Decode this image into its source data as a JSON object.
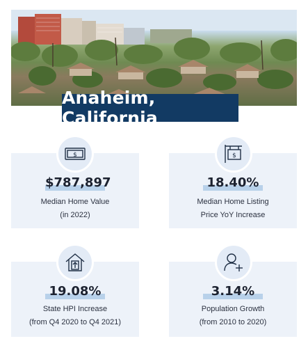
{
  "title": "Anaheim, California",
  "stats": [
    {
      "value": "$787,897",
      "label_line1": "Median Home Value",
      "label_line2": "(in 2022)",
      "icon": "money-bill-icon"
    },
    {
      "value": "18.40%",
      "label_line1": "Median Home Listing",
      "label_line2": "Price YoY Increase",
      "icon": "listing-sign-icon"
    },
    {
      "value": "19.08%",
      "label_line1": "State HPI Increase",
      "label_line2": "(from Q4 2020 to Q4 2021)",
      "icon": "house-up-arrow-icon"
    },
    {
      "value": "3.14%",
      "label_line1": "Population Growth",
      "label_line2": "(from 2010 to 2020)",
      "icon": "person-plus-icon"
    }
  ],
  "colors": {
    "title_bg": "#123a63",
    "card_bg": "#edf2f9",
    "highlight": "#b8d1ea",
    "icon_stroke": "#1f2f45"
  }
}
